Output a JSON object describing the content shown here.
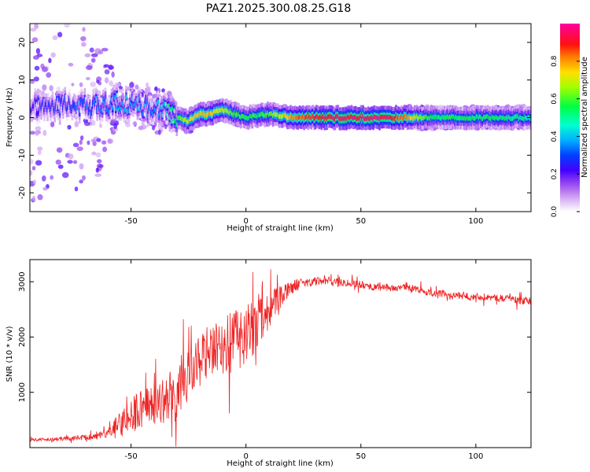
{
  "page_title": "PAZ1.2025.300.08.25.G18",
  "chart_data": [
    {
      "type": "heatmap",
      "xlabel": "Height of straight line (km)",
      "ylabel": "Frequency (Hz)",
      "xlim": [
        -94,
        124
      ],
      "ylim": [
        -25,
        25
      ],
      "xticks": [
        -50,
        0,
        50,
        100
      ],
      "yticks": [
        -20,
        -10,
        0,
        10,
        20
      ],
      "xtick_labels": [
        "-50",
        "0",
        "50",
        "100"
      ],
      "ytick_labels": [
        "-20",
        "-10",
        "0",
        "10",
        "20"
      ],
      "grid": false,
      "colorbar": {
        "label": "Normalized spectral amplitude",
        "range": [
          0,
          1
        ],
        "ticks": [
          0.0,
          0.2,
          0.4,
          0.6,
          0.8
        ],
        "tick_labels": [
          "0.0",
          "0.2",
          "0.4",
          "0.6",
          "0.8"
        ],
        "colormap": "rainbow (white-purple-blue-cyan-green-yellow-red-magenta)"
      },
      "ridge": {
        "description_points_x": [
          -94,
          -80,
          -65,
          -55,
          -45,
          -40,
          -35,
          -30,
          -25,
          -20,
          -15,
          -10,
          -5,
          0,
          10,
          20,
          30,
          40,
          50,
          60,
          70,
          80,
          90,
          100,
          110,
          124
        ],
        "center_frequency": [
          3,
          3,
          3,
          4,
          3,
          2,
          2,
          0,
          -1,
          1,
          1,
          2,
          1,
          0,
          1,
          0,
          0,
          0,
          0,
          0,
          0,
          0,
          0,
          0,
          0,
          0
        ],
        "peak_amplitude": [
          0.25,
          0.3,
          0.35,
          0.4,
          0.35,
          0.35,
          0.45,
          0.55,
          0.7,
          0.75,
          0.75,
          0.7,
          0.6,
          0.55,
          0.6,
          0.8,
          0.9,
          0.95,
          0.95,
          0.95,
          0.8,
          0.55,
          0.55,
          0.55,
          0.55,
          0.5
        ],
        "scatter_spread_hz": [
          25,
          25,
          20,
          6,
          6,
          6,
          6,
          3,
          3,
          3,
          3,
          3,
          3,
          2,
          2,
          2,
          2,
          2,
          2,
          2,
          3,
          3,
          3,
          3,
          3,
          3
        ]
      }
    },
    {
      "type": "line",
      "xlabel": "Height of straight line (km)",
      "ylabel": "SNR (10 * v/v)",
      "xlim": [
        -94,
        124
      ],
      "ylim": [
        0,
        3400
      ],
      "xticks": [
        -50,
        0,
        50,
        100
      ],
      "yticks": [
        1000,
        2000,
        3000
      ],
      "xtick_labels": [
        "-50",
        "0",
        "50",
        "100"
      ],
      "ytick_labels": [
        "1000",
        "2000",
        "3000"
      ],
      "grid": false,
      "series": [
        {
          "color": "#ee2222",
          "x": [
            -94,
            -85,
            -75,
            -65,
            -60,
            -55,
            -50,
            -45,
            -40,
            -35,
            -30,
            -25,
            -20,
            -15,
            -10,
            -5,
            0,
            5,
            10,
            15,
            20,
            25,
            30,
            35,
            40,
            45,
            50,
            55,
            60,
            65,
            70,
            75,
            80,
            85,
            90,
            95,
            100,
            105,
            110,
            115,
            120,
            124
          ],
          "values": [
            140,
            150,
            170,
            200,
            260,
            400,
            600,
            700,
            780,
            850,
            1000,
            1300,
            1550,
            1700,
            1800,
            1950,
            2050,
            2250,
            2500,
            2700,
            2900,
            3000,
            3000,
            3000,
            3000,
            2980,
            2950,
            2900,
            2900,
            2880,
            2900,
            2850,
            2800,
            2780,
            2750,
            2740,
            2740,
            2720,
            2700,
            2700,
            2650,
            2650
          ],
          "noise_amplitude": [
            40,
            50,
            60,
            80,
            120,
            350,
            500,
            500,
            500,
            600,
            600,
            650,
            700,
            700,
            750,
            800,
            800,
            700,
            500,
            300,
            180,
            130,
            120,
            100,
            100,
            100,
            90,
            90,
            90,
            90,
            90,
            90,
            90,
            90,
            90,
            90,
            90,
            90,
            90,
            90,
            100,
            100
          ]
        }
      ]
    }
  ]
}
